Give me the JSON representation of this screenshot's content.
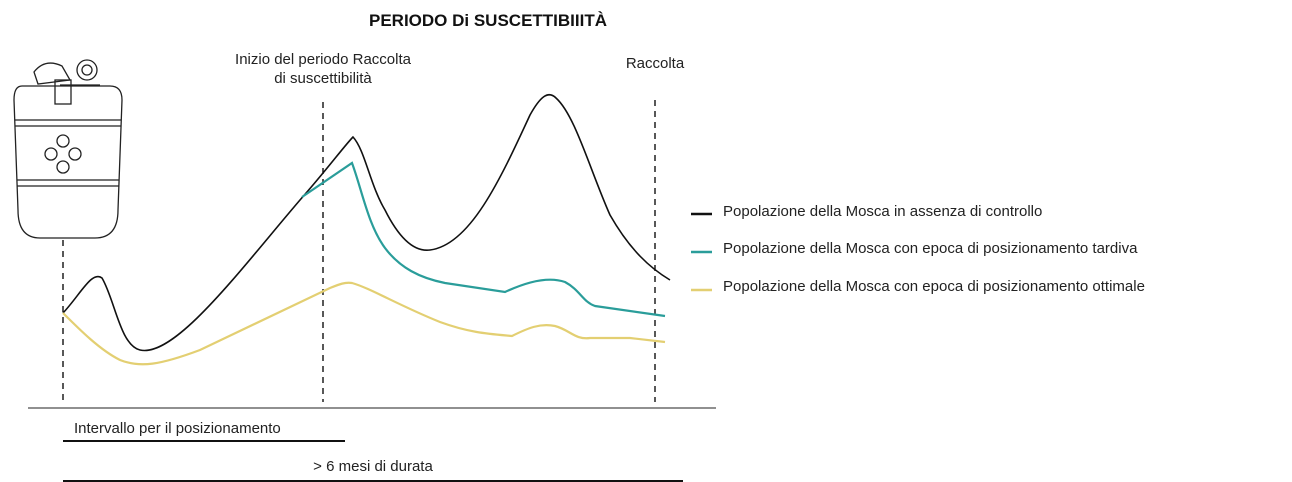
{
  "title": "PERIODO Di SUSCETTIBIIITÀ",
  "labels": {
    "period_start": [
      "Inizio del periodo Raccolta",
      "di suscettibilità"
    ],
    "harvest": "Raccolta",
    "interval": "Intervallo per il posizionamento",
    "duration": "> 6 mesi di durata"
  },
  "legend": [
    "Popolazione della Mosca in assenza di controllo",
    "Popolazione della Mosca con epoca di posizionamento tardiva",
    "Popolazione della Mosca con epoca di posizionamento ottimale"
  ]
}
